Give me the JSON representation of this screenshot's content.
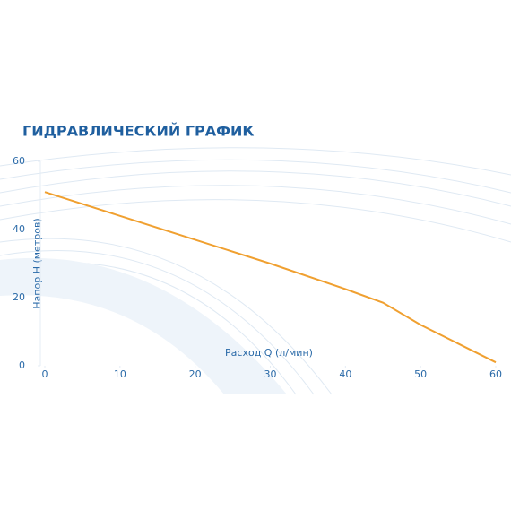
{
  "chart_data": {
    "type": "line",
    "title": "ГИДРАВЛИЧЕСКИЙ ГРАФИК",
    "x_label": "Расход Q (л/мин)",
    "y_label": "Напор H (метров)",
    "x": [
      0,
      10,
      20,
      30,
      40,
      45,
      50,
      55,
      60
    ],
    "series": [
      {
        "color": "#f0a030",
        "values": [
          51,
          44,
          37,
          30,
          22.5,
          18.5,
          12,
          6.5,
          1
        ]
      }
    ],
    "xlim": [
      0,
      60
    ],
    "xticks": [
      0,
      10,
      20,
      30,
      40,
      50,
      60
    ],
    "ylim": [
      0,
      60
    ],
    "yticks": [
      0,
      20,
      40,
      60
    ]
  }
}
